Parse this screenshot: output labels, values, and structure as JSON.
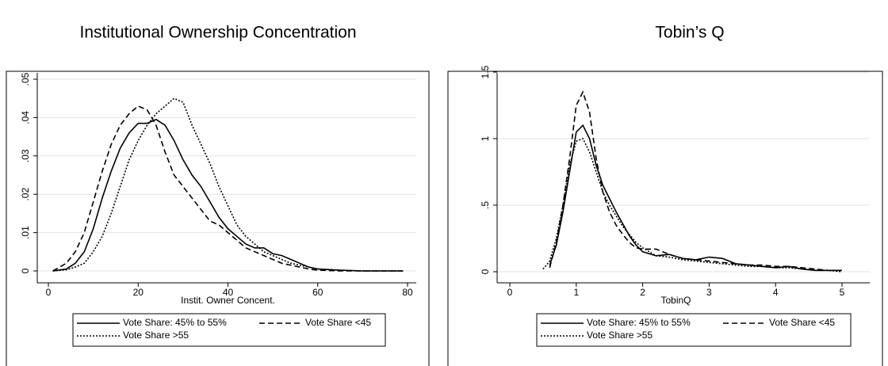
{
  "chart_data": [
    {
      "type": "line",
      "title": "Institutional Ownership Concentration",
      "x_label": "Instit. Owner Concent.",
      "x": [
        1,
        4,
        6,
        8,
        10,
        12,
        14,
        16,
        18,
        20,
        22,
        24,
        26,
        28,
        30,
        32,
        34,
        36,
        38,
        40,
        42,
        44,
        46,
        48,
        50,
        52,
        54,
        56,
        58,
        60,
        65,
        70,
        75,
        79
      ],
      "series": [
        {
          "name": "Vote Share: 45% to 55%",
          "color": "#000000",
          "dash": "solid",
          "values": [
            0,
            0.0005,
            0.002,
            0.005,
            0.011,
            0.019,
            0.026,
            0.032,
            0.036,
            0.0385,
            0.0385,
            0.0395,
            0.038,
            0.034,
            0.029,
            0.025,
            0.022,
            0.018,
            0.014,
            0.011,
            0.009,
            0.007,
            0.006,
            0.006,
            0.0045,
            0.004,
            0.003,
            0.002,
            0.001,
            0.0005,
            0.0002,
            0,
            0,
            0
          ]
        },
        {
          "name": "Vote Share <45",
          "color": "#000000",
          "dash": "dashed",
          "values": [
            0,
            0.002,
            0.005,
            0.01,
            0.018,
            0.026,
            0.033,
            0.038,
            0.041,
            0.043,
            0.042,
            0.038,
            0.031,
            0.025,
            0.022,
            0.019,
            0.016,
            0.013,
            0.012,
            0.01,
            0.008,
            0.006,
            0.005,
            0.004,
            0.003,
            0.002,
            0.0015,
            0.001,
            0.0005,
            0.0002,
            0,
            0,
            0,
            0
          ]
        },
        {
          "name": "Vote Share >55",
          "color": "#000000",
          "dash": "dotted",
          "values": [
            0,
            0.0003,
            0.001,
            0.002,
            0.005,
            0.009,
            0.015,
            0.022,
            0.029,
            0.034,
            0.038,
            0.041,
            0.043,
            0.045,
            0.044,
            0.038,
            0.033,
            0.028,
            0.022,
            0.017,
            0.012,
            0.009,
            0.007,
            0.005,
            0.004,
            0.003,
            0.002,
            0.0015,
            0.001,
            0.0005,
            0.0002,
            0,
            0,
            0
          ]
        }
      ],
      "xlim": [
        0,
        80
      ],
      "xticks": [
        0,
        20,
        40,
        60,
        80
      ],
      "ylim": [
        0,
        0.05
      ],
      "yticks": [
        0,
        {
          "value": 0.01,
          "label": ".01"
        },
        {
          "value": 0.02,
          "label": ".02"
        },
        {
          "value": 0.03,
          "label": ".03"
        },
        {
          "value": 0.04,
          "label": ".04"
        },
        {
          "value": 0.05,
          "label": ".05"
        }
      ],
      "grid": true,
      "legend": "bottom"
    },
    {
      "type": "line",
      "title": "Tobin’s Q",
      "x_label": "TobinQ",
      "x": [
        0.5,
        0.6,
        0.7,
        0.8,
        0.9,
        1.0,
        1.1,
        1.2,
        1.3,
        1.4,
        1.5,
        1.6,
        1.7,
        1.8,
        1.9,
        2.0,
        2.2,
        2.4,
        2.6,
        2.8,
        3.0,
        3.2,
        3.4,
        3.6,
        3.8,
        4.0,
        4.2,
        4.4,
        4.6,
        4.8,
        5.0
      ],
      "series": [
        {
          "name": "Vote Share: 45% to 55%",
          "color": "#000000",
          "dash": "solid",
          "values": [
            null,
            0.05,
            0.2,
            0.45,
            0.75,
            1.05,
            1.1,
            1.0,
            0.8,
            0.65,
            0.55,
            0.45,
            0.36,
            0.27,
            0.2,
            0.15,
            0.12,
            0.13,
            0.1,
            0.09,
            0.11,
            0.1,
            0.06,
            0.05,
            0.04,
            0.03,
            0.04,
            0.02,
            0.01,
            0.01,
            0.01
          ]
        },
        {
          "name": "Vote Share <45",
          "color": "#000000",
          "dash": "dashed",
          "values": [
            null,
            0.03,
            0.22,
            0.5,
            0.85,
            1.25,
            1.35,
            1.2,
            0.85,
            0.6,
            0.45,
            0.35,
            0.28,
            0.22,
            0.18,
            0.17,
            0.17,
            0.13,
            0.1,
            0.09,
            0.08,
            0.07,
            0.06,
            0.05,
            0.05,
            0.04,
            0.04,
            0.03,
            0.02,
            0.01,
            0.01
          ]
        },
        {
          "name": "Vote Share >55",
          "color": "#000000",
          "dash": "dotted",
          "values": [
            0.02,
            0.08,
            0.25,
            0.5,
            0.8,
            0.98,
            1.0,
            0.9,
            0.75,
            0.6,
            0.5,
            0.42,
            0.34,
            0.28,
            0.22,
            0.18,
            0.12,
            0.11,
            0.09,
            0.08,
            0.07,
            0.06,
            0.05,
            0.04,
            0.04,
            0.03,
            0.03,
            0.02,
            0.01,
            0.01,
            0
          ]
        }
      ],
      "xlim": [
        0,
        5
      ],
      "xticks": [
        0,
        1,
        2,
        3,
        4,
        5
      ],
      "ylim": [
        0,
        1.5
      ],
      "yticks": [
        0,
        {
          "value": 0.5,
          "label": ".5"
        },
        1,
        1.5
      ],
      "grid": true,
      "legend": "bottom"
    }
  ]
}
